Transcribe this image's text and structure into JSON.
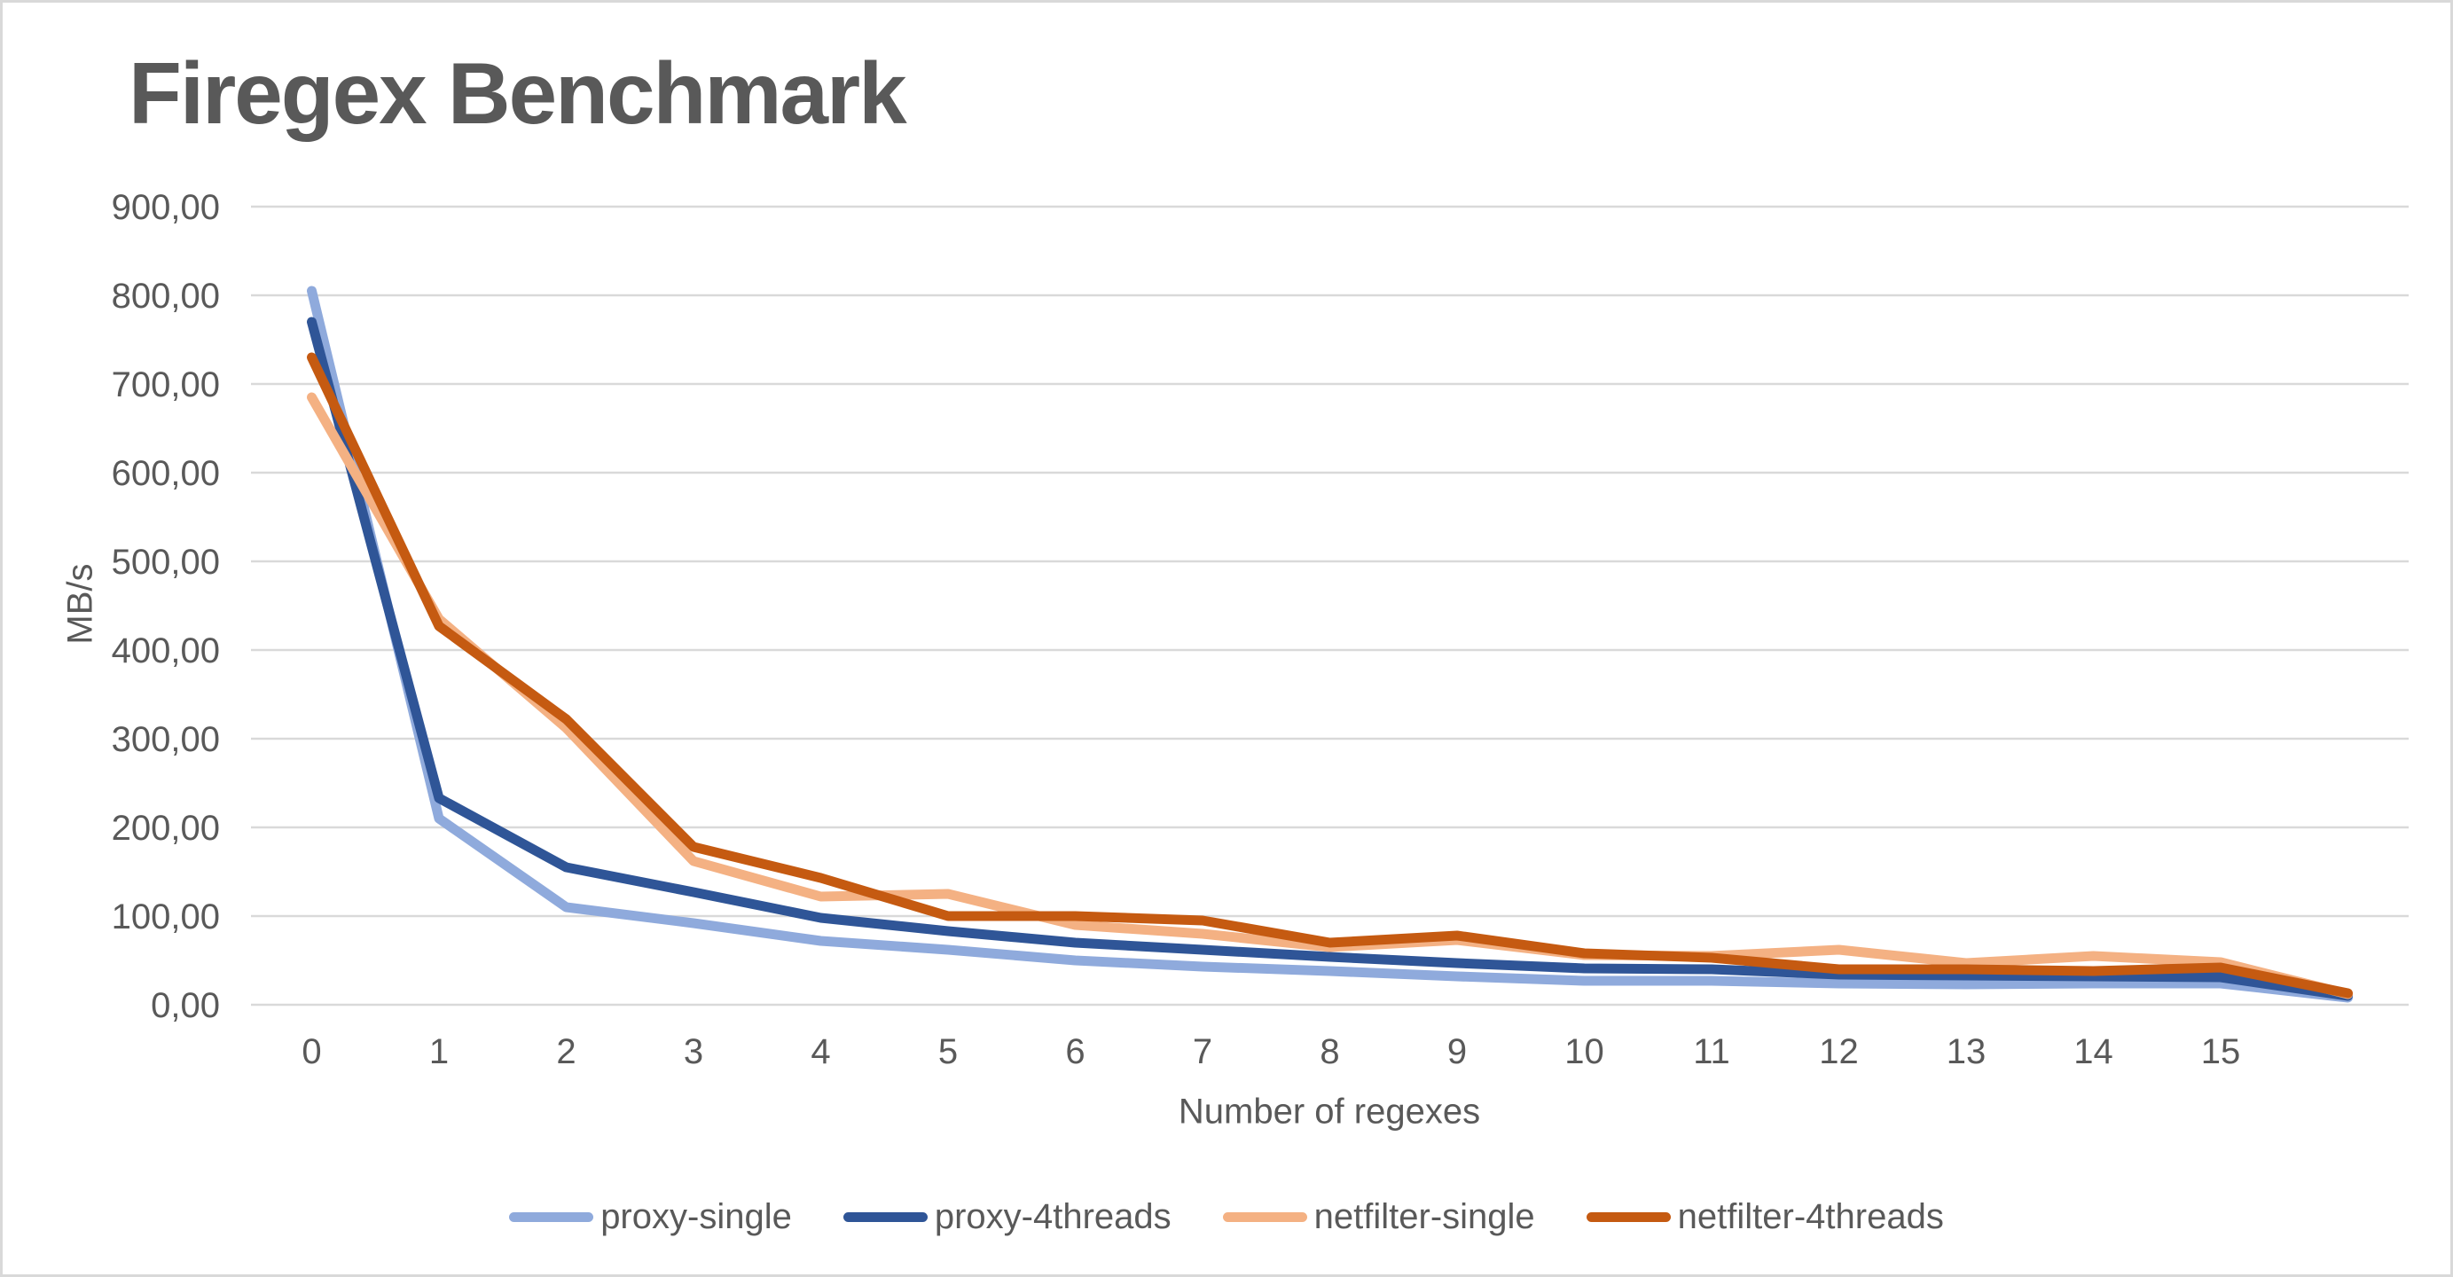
{
  "chart": {
    "title": "Firegex Benchmark",
    "x_axis_title": "Number of regexes",
    "y_axis_title": "MB/s"
  },
  "colors": {
    "text": "#595959",
    "title_text": "#595959",
    "gridline": "#D9D9D9",
    "canvas_border": "#D9D9D9",
    "background": "#FFFFFF"
  },
  "chart_data": {
    "type": "line",
    "title": "Firegex Benchmark",
    "xlabel": "Number of regexes",
    "ylabel": "MB/s",
    "x": [
      0,
      1,
      2,
      3,
      4,
      5,
      6,
      7,
      8,
      9,
      10,
      11,
      12,
      13,
      14,
      15,
      16
    ],
    "x_tick_labels": [
      "0",
      "1",
      "2",
      "3",
      "4",
      "5",
      "6",
      "7",
      "8",
      "9",
      "10",
      "11",
      "12",
      "13",
      "14",
      "15"
    ],
    "ylim": [
      0,
      900
    ],
    "y_ticks": [
      0,
      100,
      200,
      300,
      400,
      500,
      600,
      700,
      800,
      900
    ],
    "y_tick_labels": [
      "0,00",
      "100,00",
      "200,00",
      "300,00",
      "400,00",
      "500,00",
      "600,00",
      "700,00",
      "800,00",
      "900,00"
    ],
    "y_tick_format": "decimal-comma",
    "grid": "horizontal",
    "legend_position": "bottom",
    "series": [
      {
        "name": "proxy-single",
        "color": "#8FAADC",
        "values": [
          805,
          210,
          110,
          92,
          72,
          62,
          50,
          43,
          38,
          32,
          27,
          27,
          24,
          23,
          24,
          24,
          8
        ]
      },
      {
        "name": "proxy-4threads",
        "color": "#2F5597",
        "values": [
          770,
          233,
          155,
          127,
          98,
          83,
          70,
          62,
          54,
          47,
          41,
          40,
          34,
          33,
          32,
          31,
          10
        ]
      },
      {
        "name": "netfilter-single",
        "color": "#F4B183",
        "values": [
          685,
          435,
          312,
          162,
          122,
          125,
          90,
          80,
          65,
          73,
          56,
          55,
          62,
          47,
          55,
          48,
          12
        ]
      },
      {
        "name": "netfilter-4threads",
        "color": "#C55A11",
        "values": [
          730,
          427,
          322,
          178,
          143,
          100,
          100,
          95,
          70,
          78,
          58,
          53,
          40,
          40,
          38,
          42,
          13
        ]
      }
    ]
  }
}
